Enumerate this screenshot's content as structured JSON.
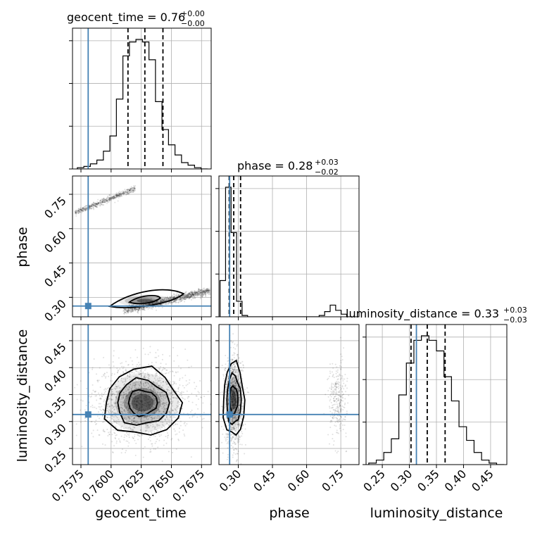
{
  "chart_data": {
    "type": "corner",
    "parameters": [
      "geocent_time",
      "phase",
      "luminosity_distance"
    ],
    "truths": {
      "geocent_time": 0.7581,
      "phase": 0.262,
      "luminosity_distance": 0.313
    },
    "truth_color": "#4682b4",
    "titles": {
      "geocent_time": {
        "base": "geocent_time = 0.76",
        "plus": "+0.00",
        "minus": "−0.00"
      },
      "phase": {
        "base": "phase = 0.28",
        "plus": "+0.03",
        "minus": "−0.02"
      },
      "luminosity_distance": {
        "base": "luminosity_distance = 0.33",
        "plus": "+0.03",
        "minus": "−0.03"
      }
    },
    "ranges": {
      "geocent_time": [
        0.7568,
        0.7683
      ],
      "phase": [
        0.215,
        0.83
      ],
      "luminosity_distance": [
        0.22,
        0.48
      ]
    },
    "ticks": {
      "geocent_time": [
        "0.7575",
        "0.7600",
        "0.7625",
        "0.7650",
        "0.7675"
      ],
      "phase": [
        "0.30",
        "0.45",
        "0.60",
        "0.75"
      ],
      "luminosity_distance": [
        "0.25",
        "0.30",
        "0.35",
        "0.40",
        "0.45"
      ]
    },
    "quantiles": {
      "geocent_time": [
        0.7614,
        0.7628,
        0.7643
      ],
      "phase": [
        0.26,
        0.28,
        0.31
      ],
      "luminosity_distance": [
        0.303,
        0.333,
        0.366
      ]
    },
    "hist_geocent_time": {
      "edges_min": 0.7572,
      "edges_max": 0.768,
      "counts": [
        1,
        2,
        4,
        7,
        14,
        26,
        55,
        89,
        100,
        102,
        100,
        86,
        53,
        31,
        19,
        11,
        5,
        3,
        1,
        0
      ]
    },
    "hist_phase": {
      "edges_min": 0.22,
      "edges_max": 0.8,
      "counts": [
        28,
        100,
        65,
        12,
        1,
        0,
        0,
        0,
        0,
        0,
        0,
        0,
        0,
        0,
        0,
        0,
        0,
        0,
        1,
        4,
        9,
        5,
        2,
        0
      ]
    },
    "hist_luminosity_distance": {
      "edges_min": 0.225,
      "edges_max": 0.475,
      "counts": [
        1,
        3,
        8,
        17,
        46,
        67,
        82,
        85,
        82,
        75,
        58,
        42,
        25,
        16,
        8,
        3,
        1,
        0
      ]
    },
    "scatter_groups": {
      "phase_vs_time_upper": {
        "x_range": [
          0.757,
          0.762
        ],
        "phase_at_start": 0.67,
        "phase_at_end": 0.775,
        "count": 600
      },
      "phase_vs_time_lower": {
        "x_range": [
          0.761,
          0.7682
        ],
        "phase_at_start": 0.24,
        "phase_at_end": 0.33,
        "count": 1300
      },
      "dist_vs_time": {
        "x_center": 0.7625,
        "x_sigma": 0.002,
        "y_center": 0.335,
        "y_sigma": 0.035,
        "count": 1800
      },
      "dist_vs_phase_main": {
        "x_center": 0.28,
        "x_sigma": 0.02,
        "y_center": 0.34,
        "y_sigma": 0.04,
        "count": 1200
      },
      "dist_vs_phase_secondary": {
        "x_center": 0.735,
        "x_sigma": 0.02,
        "y_center": 0.34,
        "y_sigma": 0.035,
        "count": 300
      }
    },
    "grid": true
  }
}
